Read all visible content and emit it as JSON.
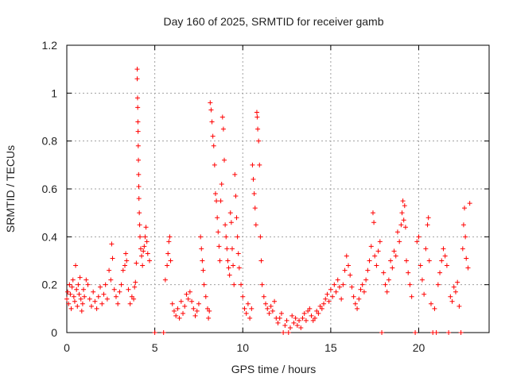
{
  "chart_data": {
    "type": "scatter",
    "title": "Day 160 of 2025, SRMTID for receiver gamb",
    "xlabel": "GPS time / hours",
    "ylabel": "SRMTID / TECUs",
    "xlim": [
      0,
      24
    ],
    "ylim": [
      0,
      1.2
    ],
    "xticks": [
      "0",
      "5",
      "10",
      "15",
      "20"
    ],
    "yticks": [
      "0",
      "0.2",
      "0.4",
      "0.6",
      "0.8",
      "1",
      "1.2"
    ],
    "grid": true,
    "marker": "+",
    "color": "#ff0000",
    "series": [
      {
        "name": "SRMTID",
        "points": [
          [
            0.0,
            0.14
          ],
          [
            0.05,
            0.17
          ],
          [
            0.1,
            0.12
          ],
          [
            0.15,
            0.2
          ],
          [
            0.2,
            0.16
          ],
          [
            0.25,
            0.1
          ],
          [
            0.3,
            0.19
          ],
          [
            0.35,
            0.22
          ],
          [
            0.4,
            0.15
          ],
          [
            0.45,
            0.13
          ],
          [
            0.5,
            0.28
          ],
          [
            0.55,
            0.18
          ],
          [
            0.6,
            0.11
          ],
          [
            0.65,
            0.2
          ],
          [
            0.7,
            0.16
          ],
          [
            0.75,
            0.23
          ],
          [
            0.8,
            0.14
          ],
          [
            0.85,
            0.09
          ],
          [
            0.9,
            0.12
          ],
          [
            0.95,
            0.18
          ],
          [
            1.0,
            0.15
          ],
          [
            1.1,
            0.22
          ],
          [
            1.2,
            0.2
          ],
          [
            1.3,
            0.14
          ],
          [
            1.4,
            0.11
          ],
          [
            1.5,
            0.17
          ],
          [
            1.6,
            0.13
          ],
          [
            1.7,
            0.1
          ],
          [
            1.8,
            0.15
          ],
          [
            1.9,
            0.19
          ],
          [
            2.0,
            0.12
          ],
          [
            2.1,
            0.16
          ],
          [
            2.2,
            0.2
          ],
          [
            2.3,
            0.14
          ],
          [
            2.4,
            0.26
          ],
          [
            2.5,
            0.22
          ],
          [
            2.55,
            0.37
          ],
          [
            2.6,
            0.31
          ],
          [
            2.7,
            0.18
          ],
          [
            2.8,
            0.15
          ],
          [
            2.9,
            0.12
          ],
          [
            3.0,
            0.17
          ],
          [
            3.1,
            0.2
          ],
          [
            3.2,
            0.26
          ],
          [
            3.3,
            0.28
          ],
          [
            3.35,
            0.33
          ],
          [
            3.4,
            0.3
          ],
          [
            3.5,
            0.18
          ],
          [
            3.6,
            0.12
          ],
          [
            3.7,
            0.15
          ],
          [
            3.8,
            0.14
          ],
          [
            3.85,
            0.19
          ],
          [
            3.9,
            0.21
          ],
          [
            3.95,
            0.29
          ],
          [
            4.0,
            1.1
          ],
          [
            4.0,
            1.06
          ],
          [
            4.02,
            0.98
          ],
          [
            4.03,
            0.94
          ],
          [
            4.04,
            0.88
          ],
          [
            4.05,
            0.84
          ],
          [
            4.06,
            0.78
          ],
          [
            4.07,
            0.72
          ],
          [
            4.08,
            0.66
          ],
          [
            4.09,
            0.61
          ],
          [
            4.1,
            0.56
          ],
          [
            4.12,
            0.5
          ],
          [
            4.14,
            0.45
          ],
          [
            4.16,
            0.4
          ],
          [
            4.2,
            0.35
          ],
          [
            4.25,
            0.32
          ],
          [
            4.3,
            0.28
          ],
          [
            4.35,
            0.34
          ],
          [
            4.4,
            0.36
          ],
          [
            4.45,
            0.4
          ],
          [
            4.5,
            0.44
          ],
          [
            4.55,
            0.38
          ],
          [
            4.6,
            0.33
          ],
          [
            4.7,
            0.3
          ],
          [
            5.0,
            0.0
          ],
          [
            5.5,
            0.0
          ],
          [
            5.6,
            0.22
          ],
          [
            5.7,
            0.28
          ],
          [
            5.75,
            0.33
          ],
          [
            5.8,
            0.38
          ],
          [
            5.85,
            0.4
          ],
          [
            5.9,
            0.3
          ],
          [
            6.0,
            0.12
          ],
          [
            6.1,
            0.09
          ],
          [
            6.2,
            0.07
          ],
          [
            6.3,
            0.1
          ],
          [
            6.4,
            0.06
          ],
          [
            6.5,
            0.13
          ],
          [
            6.6,
            0.08
          ],
          [
            6.7,
            0.11
          ],
          [
            6.8,
            0.16
          ],
          [
            6.9,
            0.14
          ],
          [
            7.0,
            0.17
          ],
          [
            7.1,
            0.13
          ],
          [
            7.2,
            0.1
          ],
          [
            7.3,
            0.07
          ],
          [
            7.4,
            0.09
          ],
          [
            7.5,
            0.12
          ],
          [
            7.6,
            0.4
          ],
          [
            7.65,
            0.35
          ],
          [
            7.7,
            0.3
          ],
          [
            7.75,
            0.26
          ],
          [
            7.8,
            0.2
          ],
          [
            7.9,
            0.15
          ],
          [
            8.0,
            0.1
          ],
          [
            8.05,
            0.06
          ],
          [
            8.1,
            0.09
          ],
          [
            8.15,
            0.96
          ],
          [
            8.2,
            0.93
          ],
          [
            8.25,
            0.88
          ],
          [
            8.3,
            0.82
          ],
          [
            8.35,
            0.78
          ],
          [
            8.4,
            0.7
          ],
          [
            8.45,
            0.58
          ],
          [
            8.5,
            0.55
          ],
          [
            8.55,
            0.48
          ],
          [
            8.6,
            0.42
          ],
          [
            8.65,
            0.36
          ],
          [
            8.7,
            0.3
          ],
          [
            8.75,
            0.55
          ],
          [
            8.8,
            0.62
          ],
          [
            8.85,
            0.9
          ],
          [
            8.9,
            0.85
          ],
          [
            8.95,
            0.72
          ],
          [
            9.0,
            0.45
          ],
          [
            9.05,
            0.4
          ],
          [
            9.1,
            0.35
          ],
          [
            9.15,
            0.3
          ],
          [
            9.2,
            0.27
          ],
          [
            9.25,
            0.24
          ],
          [
            9.3,
            0.5
          ],
          [
            9.35,
            0.46
          ],
          [
            9.4,
            0.35
          ],
          [
            9.45,
            0.28
          ],
          [
            9.5,
            0.2
          ],
          [
            9.55,
            0.66
          ],
          [
            9.6,
            0.57
          ],
          [
            9.65,
            0.48
          ],
          [
            9.7,
            0.4
          ],
          [
            9.75,
            0.33
          ],
          [
            9.8,
            0.27
          ],
          [
            9.9,
            0.2
          ],
          [
            10.0,
            0.15
          ],
          [
            10.1,
            0.1
          ],
          [
            10.2,
            0.08
          ],
          [
            10.3,
            0.12
          ],
          [
            10.4,
            0.06
          ],
          [
            10.5,
            0.1
          ],
          [
            10.55,
            0.7
          ],
          [
            10.6,
            0.64
          ],
          [
            10.65,
            0.58
          ],
          [
            10.7,
            0.52
          ],
          [
            10.75,
            0.45
          ],
          [
            10.8,
            0.92
          ],
          [
            10.82,
            0.9
          ],
          [
            10.85,
            0.85
          ],
          [
            10.9,
            0.8
          ],
          [
            10.95,
            0.7
          ],
          [
            11.0,
            0.4
          ],
          [
            11.05,
            0.3
          ],
          [
            11.1,
            0.2
          ],
          [
            11.2,
            0.15
          ],
          [
            11.3,
            0.12
          ],
          [
            11.4,
            0.1
          ],
          [
            11.5,
            0.08
          ],
          [
            11.6,
            0.11
          ],
          [
            11.7,
            0.09
          ],
          [
            11.8,
            0.13
          ],
          [
            11.9,
            0.06
          ],
          [
            12.0,
            0.04
          ],
          [
            12.1,
            0.06
          ],
          [
            12.2,
            0.08
          ],
          [
            12.3,
            0.0
          ],
          [
            12.4,
            0.03
          ],
          [
            12.5,
            0.05
          ],
          [
            12.6,
            0.0
          ],
          [
            12.7,
            0.02
          ],
          [
            12.8,
            0.07
          ],
          [
            12.9,
            0.04
          ],
          [
            13.0,
            0.06
          ],
          [
            13.1,
            0.03
          ],
          [
            13.2,
            0.05
          ],
          [
            13.3,
            0.02
          ],
          [
            13.4,
            0.06
          ],
          [
            13.5,
            0.08
          ],
          [
            13.6,
            0.05
          ],
          [
            13.7,
            0.09
          ],
          [
            13.8,
            0.1
          ],
          [
            13.9,
            0.07
          ],
          [
            14.0,
            0.05
          ],
          [
            14.1,
            0.06
          ],
          [
            14.2,
            0.09
          ],
          [
            14.3,
            0.08
          ],
          [
            14.4,
            0.11
          ],
          [
            14.5,
            0.1
          ],
          [
            14.6,
            0.12
          ],
          [
            14.7,
            0.14
          ],
          [
            14.8,
            0.16
          ],
          [
            14.9,
            0.13
          ],
          [
            15.0,
            0.18
          ],
          [
            15.1,
            0.15
          ],
          [
            15.2,
            0.2
          ],
          [
            15.3,
            0.17
          ],
          [
            15.4,
            0.22
          ],
          [
            15.5,
            0.19
          ],
          [
            15.6,
            0.14
          ],
          [
            15.7,
            0.2
          ],
          [
            15.8,
            0.26
          ],
          [
            15.9,
            0.32
          ],
          [
            16.0,
            0.28
          ],
          [
            16.1,
            0.24
          ],
          [
            16.2,
            0.19
          ],
          [
            16.3,
            0.15
          ],
          [
            16.4,
            0.12
          ],
          [
            16.5,
            0.1
          ],
          [
            16.6,
            0.14
          ],
          [
            16.7,
            0.18
          ],
          [
            16.8,
            0.2
          ],
          [
            16.9,
            0.17
          ],
          [
            17.0,
            0.22
          ],
          [
            17.1,
            0.26
          ],
          [
            17.2,
            0.3
          ],
          [
            17.3,
            0.36
          ],
          [
            17.4,
            0.5
          ],
          [
            17.45,
            0.46
          ],
          [
            17.5,
            0.32
          ],
          [
            17.6,
            0.28
          ],
          [
            17.7,
            0.34
          ],
          [
            17.8,
            0.38
          ],
          [
            17.9,
            0.0
          ],
          [
            18.0,
            0.25
          ],
          [
            18.1,
            0.2
          ],
          [
            18.2,
            0.17
          ],
          [
            18.3,
            0.22
          ],
          [
            18.4,
            0.3
          ],
          [
            18.5,
            0.27
          ],
          [
            18.6,
            0.34
          ],
          [
            18.7,
            0.32
          ],
          [
            18.8,
            0.42
          ],
          [
            18.9,
            0.38
          ],
          [
            19.0,
            0.45
          ],
          [
            19.05,
            0.5
          ],
          [
            19.1,
            0.55
          ],
          [
            19.15,
            0.47
          ],
          [
            19.2,
            0.53
          ],
          [
            19.25,
            0.44
          ],
          [
            19.3,
            0.3
          ],
          [
            19.4,
            0.25
          ],
          [
            19.5,
            0.2
          ],
          [
            19.6,
            0.15
          ],
          [
            19.8,
            0.0
          ],
          [
            19.9,
            0.38
          ],
          [
            20.0,
            0.4
          ],
          [
            20.1,
            0.28
          ],
          [
            20.2,
            0.22
          ],
          [
            20.3,
            0.16
          ],
          [
            20.4,
            0.35
          ],
          [
            20.5,
            0.45
          ],
          [
            20.55,
            0.48
          ],
          [
            20.6,
            0.3
          ],
          [
            20.7,
            0.12
          ],
          [
            20.8,
            0.0
          ],
          [
            20.9,
            0.1
          ],
          [
            21.0,
            0.0
          ],
          [
            21.1,
            0.2
          ],
          [
            21.2,
            0.25
          ],
          [
            21.3,
            0.3
          ],
          [
            21.4,
            0.35
          ],
          [
            21.5,
            0.32
          ],
          [
            21.6,
            0.28
          ],
          [
            21.7,
            0.0
          ],
          [
            21.8,
            0.15
          ],
          [
            21.9,
            0.13
          ],
          [
            22.0,
            0.19
          ],
          [
            22.1,
            0.17
          ],
          [
            22.2,
            0.21
          ],
          [
            22.3,
            0.11
          ],
          [
            22.4,
            0.0
          ],
          [
            22.5,
            0.35
          ],
          [
            22.55,
            0.45
          ],
          [
            22.6,
            0.52
          ],
          [
            22.65,
            0.4
          ],
          [
            22.7,
            0.31
          ],
          [
            22.8,
            0.27
          ],
          [
            22.9,
            0.54
          ]
        ]
      }
    ]
  }
}
